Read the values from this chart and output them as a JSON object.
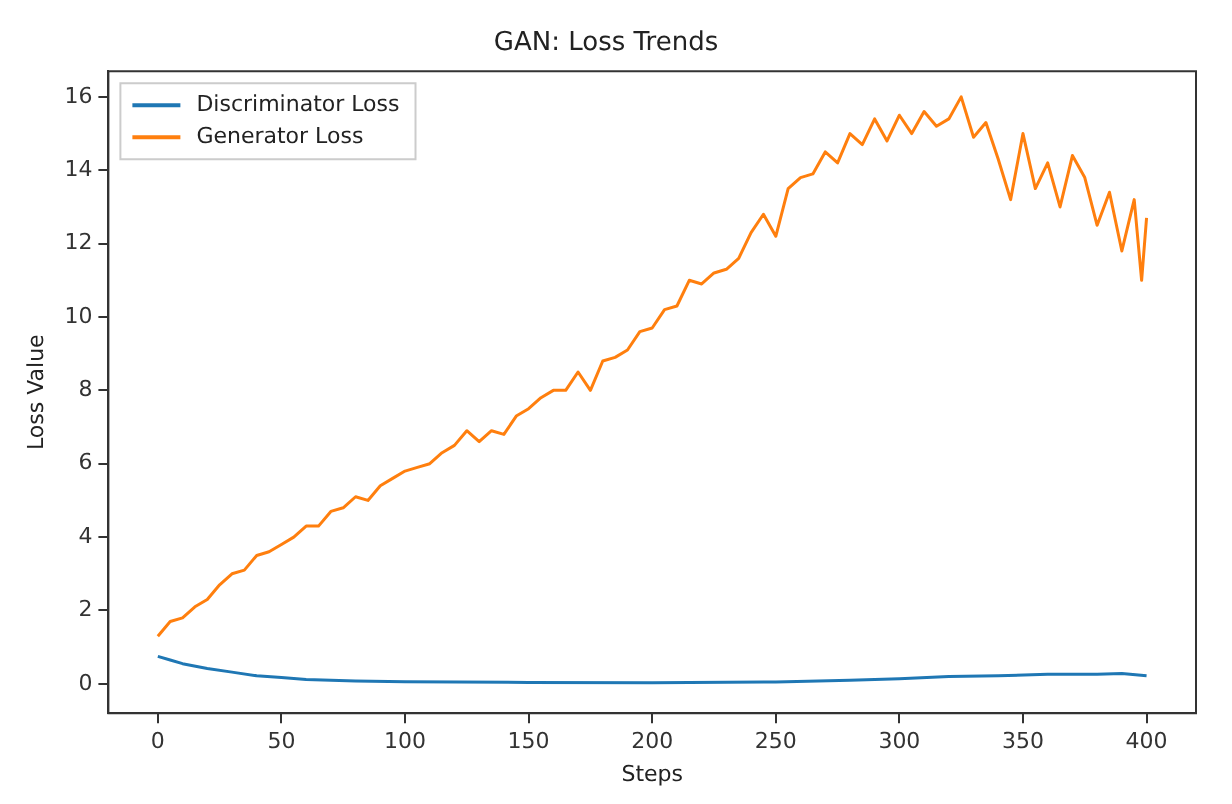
{
  "chart_data": {
    "type": "line",
    "title": "GAN: Loss Trends",
    "xlabel": "Steps",
    "ylabel": "Loss Value",
    "xlim": [
      -20,
      420
    ],
    "xticks": [
      0,
      50,
      100,
      150,
      200,
      250,
      300,
      350,
      400
    ],
    "ylim": [
      -0.8,
      16.7
    ],
    "yticks": [
      0,
      2,
      4,
      6,
      8,
      10,
      12,
      14,
      16
    ],
    "grid": false,
    "legend": "top left",
    "marker": "none",
    "line_style": "solid",
    "series": [
      {
        "name": "Discriminator Loss",
        "color": "#1f77b4",
        "x": [
          0,
          5,
          10,
          20,
          30,
          40,
          50,
          60,
          80,
          100,
          150,
          200,
          250,
          280,
          300,
          320,
          340,
          360,
          380,
          390,
          400
        ],
        "values": [
          0.75,
          0.65,
          0.55,
          0.42,
          0.32,
          0.22,
          0.17,
          0.12,
          0.08,
          0.06,
          0.04,
          0.03,
          0.05,
          0.1,
          0.14,
          0.2,
          0.22,
          0.26,
          0.26,
          0.28,
          0.22
        ]
      },
      {
        "name": "Generator Loss",
        "color": "#ff7f0e",
        "x": [
          0,
          5,
          10,
          15,
          20,
          25,
          30,
          35,
          40,
          45,
          50,
          55,
          60,
          65,
          70,
          75,
          80,
          85,
          90,
          95,
          100,
          105,
          110,
          115,
          120,
          125,
          130,
          135,
          140,
          145,
          150,
          155,
          160,
          165,
          170,
          175,
          180,
          185,
          190,
          195,
          200,
          205,
          210,
          215,
          220,
          225,
          230,
          235,
          240,
          245,
          250,
          255,
          260,
          265,
          270,
          275,
          280,
          285,
          290,
          295,
          300,
          305,
          310,
          315,
          320,
          325,
          330,
          335,
          340,
          345,
          350,
          355,
          360,
          365,
          370,
          375,
          380,
          385,
          390,
          395,
          398,
          400
        ],
        "values": [
          1.3,
          1.7,
          1.8,
          2.1,
          2.3,
          2.7,
          3.0,
          3.1,
          3.5,
          3.6,
          3.8,
          4.0,
          4.3,
          4.3,
          4.7,
          4.8,
          5.1,
          5.0,
          5.4,
          5.6,
          5.8,
          5.9,
          6.0,
          6.3,
          6.5,
          6.9,
          6.6,
          6.9,
          6.8,
          7.3,
          7.5,
          7.8,
          8.0,
          8.0,
          8.5,
          8.0,
          8.8,
          8.9,
          9.1,
          9.6,
          9.7,
          10.2,
          10.3,
          11.0,
          10.9,
          11.2,
          11.3,
          11.6,
          12.3,
          12.8,
          12.2,
          13.5,
          13.8,
          13.9,
          14.5,
          14.2,
          15.0,
          14.7,
          15.4,
          14.8,
          15.5,
          15.0,
          15.6,
          15.2,
          15.4,
          16.0,
          14.9,
          15.3,
          14.3,
          13.2,
          15.0,
          13.5,
          14.2,
          13.0,
          14.4,
          13.8,
          12.5,
          13.4,
          11.8,
          13.2,
          11.0,
          12.7
        ]
      }
    ]
  }
}
